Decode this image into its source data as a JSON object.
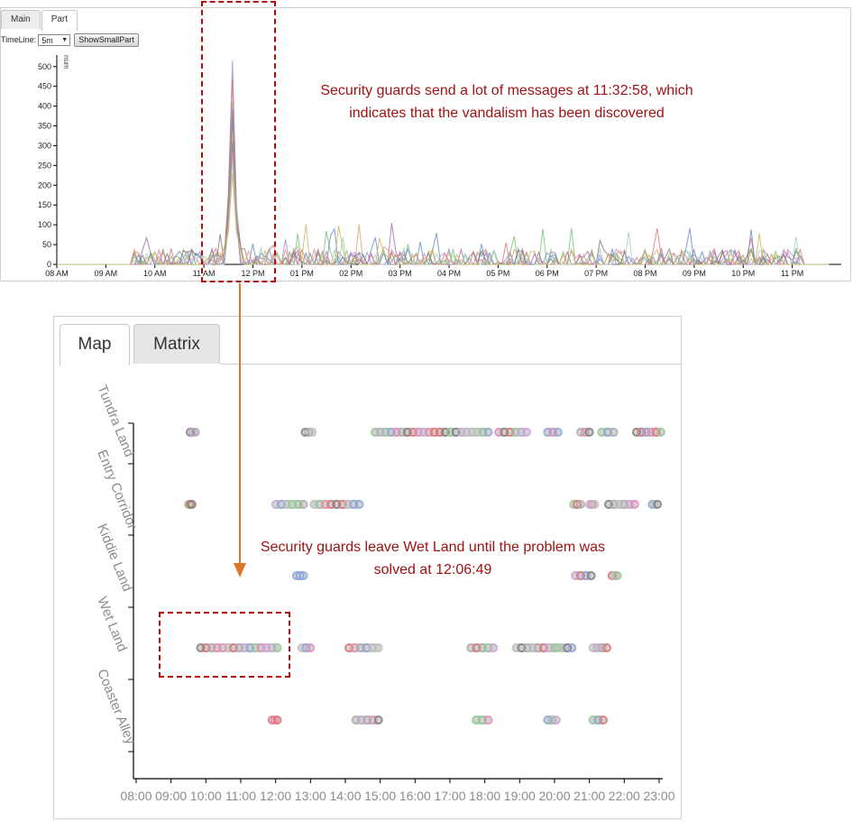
{
  "top_panel": {
    "tabs": [
      {
        "label": "Main",
        "active": false
      },
      {
        "label": "Part",
        "active": true
      }
    ],
    "timeline_label": "TimeLine:",
    "timeline_value": "5m",
    "show_button": "ShowSmallPart"
  },
  "annotations": {
    "top": "Security guards send a lot of messages at 11:32:58, which indicates that the vandalism has been discovered",
    "bottom": "Security guards leave Wet Land until the problem was solved at 12:06:49"
  },
  "bottom_panel": {
    "tabs": [
      {
        "label": "Map",
        "active": true
      },
      {
        "label": "Matrix",
        "active": false
      }
    ]
  },
  "colors": {
    "annotation": "#9e1111",
    "dash": "#b00e0e",
    "arrow": "#d9782a"
  },
  "chart_data": [
    {
      "type": "line",
      "ylabel": "num",
      "ylim": [
        0,
        520
      ],
      "yticks": [
        0,
        50,
        100,
        150,
        200,
        250,
        300,
        350,
        400,
        450,
        500
      ],
      "xlim_hours": [
        8,
        24
      ],
      "xtick_labels": [
        "08 AM",
        "09 AM",
        "10 AM",
        "11 AM",
        "12 PM",
        "01 PM",
        "02 PM",
        "03 PM",
        "04 PM",
        "05 PM",
        "06 PM",
        "07 PM",
        "08 PM",
        "09 PM",
        "10 PM",
        "11 PM"
      ],
      "grid": false,
      "series_colors": [
        "#8f8fd8",
        "#e26d6d",
        "#6fbf6f",
        "#a06aa8",
        "#5b8ac9",
        "#e0a060",
        "#777777",
        "#d27fb8",
        "#9ad0c0",
        "#c9b458"
      ],
      "peak": {
        "time": "11:32:58",
        "x_hour": 11.55,
        "max_value": 515,
        "series_peaks": [
          515,
          470,
          410,
          390,
          365,
          340,
          310,
          285,
          260,
          230
        ]
      },
      "background_activity_max": 105
    },
    {
      "type": "scatter",
      "categories": [
        "Tundra Land",
        "Entry Corridor",
        "Kiddie Land",
        "Wet Land",
        "Coaster Alley"
      ],
      "x_tick_labels": [
        "08:00",
        "09:00",
        "10:00",
        "11:00",
        "12:00",
        "13:00",
        "14:00",
        "15:00",
        "16:00",
        "17:00",
        "18:00",
        "19:00",
        "20:00",
        "21:00",
        "22:00",
        "23:00"
      ],
      "xlim_hours": [
        8,
        23
      ],
      "point_colors": [
        "#bdbdbd",
        "#aaaaaa",
        "#e889b6",
        "#7c7c7c",
        "#c9a5d8",
        "#e27070",
        "#8fc98f",
        "#8aa4d8"
      ],
      "clusters": [
        {
          "category": "Tundra Land",
          "ranges": [
            [
              9.55,
              9.7
            ],
            [
              12.85,
              13.05
            ],
            [
              14.85,
              18.1
            ],
            [
              18.4,
              19.2
            ],
            [
              19.8,
              20.1
            ],
            [
              20.75,
              21.0
            ],
            [
              21.35,
              21.7
            ],
            [
              22.35,
              23.05
            ]
          ]
        },
        {
          "category": "Entry Corridor",
          "ranges": [
            [
              9.5,
              9.6
            ],
            [
              12.0,
              12.8
            ],
            [
              13.1,
              14.4
            ],
            [
              20.55,
              20.75
            ],
            [
              21.0,
              21.15
            ],
            [
              21.55,
              22.3
            ],
            [
              22.8,
              22.95
            ]
          ]
        },
        {
          "category": "Kiddie Land",
          "ranges": [
            [
              12.6,
              12.8
            ],
            [
              20.6,
              21.05
            ],
            [
              21.65,
              21.8
            ]
          ]
        },
        {
          "category": "Wet Land",
          "ranges": [
            [
              9.85,
              12.05
            ],
            [
              12.75,
              13.0
            ],
            [
              14.1,
              14.95
            ],
            [
              17.6,
              18.25
            ],
            [
              18.9,
              20.0
            ],
            [
              20.1,
              20.5
            ],
            [
              21.1,
              21.5
            ]
          ]
        },
        {
          "category": "Coaster Alley",
          "ranges": [
            [
              11.9,
              12.05
            ],
            [
              14.3,
              14.95
            ],
            [
              17.75,
              18.1
            ],
            [
              19.8,
              20.05
            ],
            [
              21.1,
              21.4
            ]
          ]
        }
      ]
    }
  ]
}
